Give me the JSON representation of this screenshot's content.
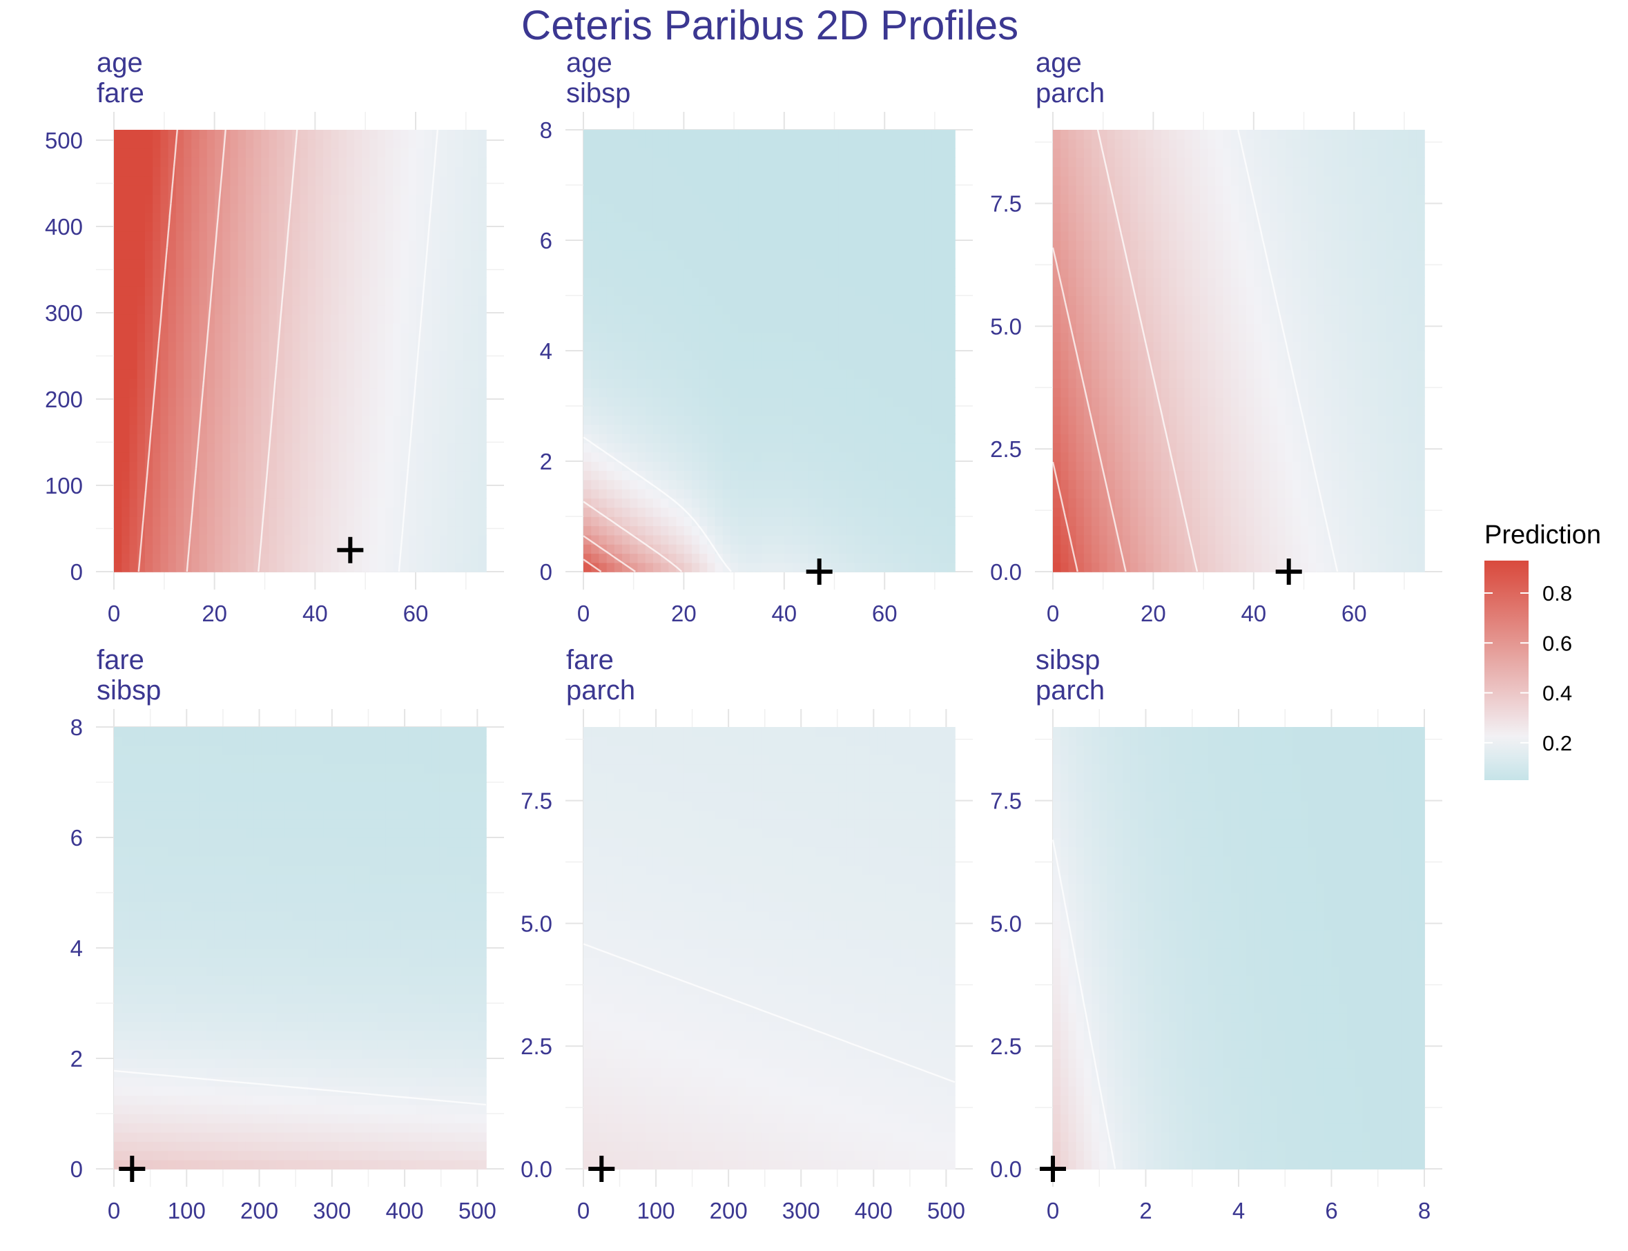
{
  "chart_data": {
    "type": "heatmap",
    "title": "Ceteris Paribus 2D Profiles",
    "legend": {
      "title": "Prediction",
      "ticks": [
        "0.8",
        "0.6",
        "0.4",
        "0.2"
      ],
      "tick_values": [
        0.8,
        0.6,
        0.4,
        0.2
      ],
      "range": [
        0.05,
        0.93
      ],
      "colors": {
        "low": "#c5e3e8",
        "mid": "#f2f2f6",
        "high": "#d94a3d"
      },
      "placement": "right"
    },
    "grid": true,
    "panels": [
      {
        "x_var": "age",
        "y_var": "fare",
        "xlim": [
          0,
          74
        ],
        "ylim": [
          0,
          512
        ],
        "x_ticks": [
          0,
          20,
          40,
          60
        ],
        "x_tick_labels": [
          "0",
          "20",
          "40",
          "60"
        ],
        "y_ticks": [
          0,
          100,
          200,
          300,
          400,
          500
        ],
        "y_tick_labels": [
          "0",
          "100",
          "200",
          "300",
          "400",
          "500"
        ],
        "observation": [
          47,
          25
        ],
        "model": "af"
      },
      {
        "x_var": "age",
        "y_var": "sibsp",
        "xlim": [
          0,
          74
        ],
        "ylim": [
          0,
          8
        ],
        "x_ticks": [
          0,
          20,
          40,
          60
        ],
        "x_tick_labels": [
          "0",
          "20",
          "40",
          "60"
        ],
        "y_ticks": [
          0,
          2,
          4,
          6,
          8
        ],
        "y_tick_labels": [
          "0",
          "2",
          "4",
          "6",
          "8"
        ],
        "observation": [
          47,
          0
        ],
        "model": "as"
      },
      {
        "x_var": "age",
        "y_var": "parch",
        "xlim": [
          0,
          74
        ],
        "ylim": [
          0,
          9
        ],
        "x_ticks": [
          0,
          20,
          40,
          60
        ],
        "x_tick_labels": [
          "0",
          "20",
          "40",
          "60"
        ],
        "y_ticks": [
          0,
          2.5,
          5,
          7.5
        ],
        "y_tick_labels": [
          "0.0",
          "2.5",
          "5.0",
          "7.5"
        ],
        "observation": [
          47,
          0
        ],
        "model": "ap"
      },
      {
        "x_var": "fare",
        "y_var": "sibsp",
        "xlim": [
          0,
          512
        ],
        "ylim": [
          0,
          8
        ],
        "x_ticks": [
          0,
          100,
          200,
          300,
          400,
          500
        ],
        "x_tick_labels": [
          "0",
          "100",
          "200",
          "300",
          "400",
          "500"
        ],
        "y_ticks": [
          0,
          2,
          4,
          6,
          8
        ],
        "y_tick_labels": [
          "0",
          "2",
          "4",
          "6",
          "8"
        ],
        "observation": [
          25,
          0
        ],
        "model": "fs"
      },
      {
        "x_var": "fare",
        "y_var": "parch",
        "xlim": [
          0,
          512
        ],
        "ylim": [
          0,
          9
        ],
        "x_ticks": [
          0,
          100,
          200,
          300,
          400,
          500
        ],
        "x_tick_labels": [
          "0",
          "100",
          "200",
          "300",
          "400",
          "500"
        ],
        "y_ticks": [
          0,
          2.5,
          5,
          7.5
        ],
        "y_tick_labels": [
          "0.0",
          "2.5",
          "5.0",
          "7.5"
        ],
        "observation": [
          25,
          0
        ],
        "model": "fp"
      },
      {
        "x_var": "sibsp",
        "y_var": "parch",
        "xlim": [
          0,
          8
        ],
        "ylim": [
          0,
          9
        ],
        "x_ticks": [
          0,
          2,
          4,
          6,
          8
        ],
        "x_tick_labels": [
          "0",
          "2",
          "4",
          "6",
          "8"
        ],
        "y_ticks": [
          0,
          2.5,
          5,
          7.5
        ],
        "y_tick_labels": [
          "0.0",
          "2.5",
          "5.0",
          "7.5"
        ],
        "observation": [
          0,
          0
        ],
        "model": "sp"
      }
    ]
  }
}
